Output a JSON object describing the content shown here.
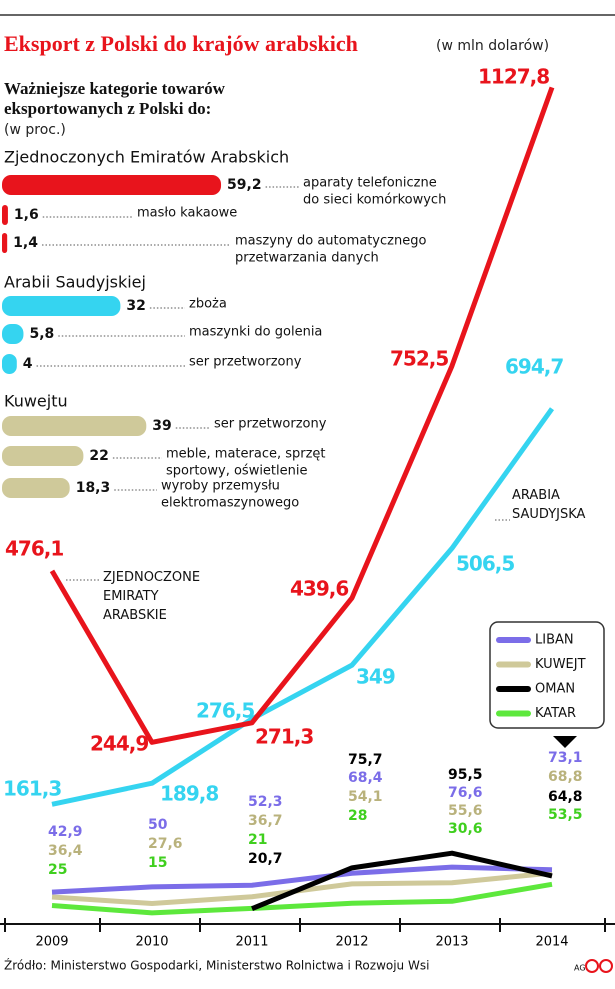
{
  "chart_data": {
    "type": "line",
    "title": "Eksport z Polski do krajów arabskich",
    "unit": "(w mln dolarów)",
    "categories": [
      "2009",
      "2010",
      "2011",
      "2012",
      "2013",
      "2014"
    ],
    "ylim": [
      0,
      1150
    ],
    "series": [
      {
        "name": "ZJEDNOCZONE EMIRATY ARABSKIE",
        "color": "#e8141c",
        "legend": false,
        "values": [
          476.1,
          244.9,
          271.3,
          439.6,
          752.5,
          1127.8
        ],
        "value_labels": [
          "476,1",
          "244,9",
          "271,3",
          "439,6",
          "752,5",
          "1127,8"
        ]
      },
      {
        "name": "ARABIA SAUDYJSKA",
        "color": "#35d4f0",
        "legend": false,
        "values": [
          161.3,
          189.8,
          276.5,
          349,
          506.5,
          694.7
        ],
        "value_labels": [
          "161,3",
          "189,8",
          "276,5",
          "349",
          "506,5",
          "694,7"
        ]
      },
      {
        "name": "LIBAN",
        "color": "#7b6de8",
        "legend": true,
        "values": [
          42.9,
          50,
          52.3,
          68.4,
          76.6,
          73.1
        ],
        "value_labels": [
          "42,9",
          "50",
          "52,3",
          "68,4",
          "76,6",
          "73,1"
        ]
      },
      {
        "name": "KUWEJT",
        "color": "#cfc99a",
        "legend": true,
        "values": [
          36.4,
          27.6,
          36.7,
          54.1,
          55.6,
          68.8
        ],
        "value_labels": [
          "36,4",
          "27,6",
          "36,7",
          "54,1",
          "55,6",
          "68,8"
        ]
      },
      {
        "name": "OMAN",
        "color": "#000000",
        "legend": true,
        "values": [
          null,
          null,
          20.7,
          75.7,
          95.5,
          64.8
        ],
        "value_labels": [
          null,
          null,
          "20,7",
          "75,7",
          "95,5",
          "64,8"
        ]
      },
      {
        "name": "KATAR",
        "color": "#5de83c",
        "legend": true,
        "values": [
          25,
          15,
          21,
          28,
          30.6,
          53.5
        ],
        "value_labels": [
          "25",
          "15",
          "21",
          "28",
          "30,6",
          "53,5"
        ]
      }
    ],
    "breakdown": {
      "type": "bar",
      "title": [
        "Ważniejsze kategorie towarów",
        "eksportowanych z Polski do:"
      ],
      "unit": "(w proc.)",
      "groups": [
        {
          "name": "Zjednoczonych Emiratów Arabskich",
          "color": "#e8141c",
          "values": [
            59.2,
            1.6,
            1.4
          ],
          "value_labels": [
            "59,2",
            "1,6",
            "1,4"
          ],
          "categories": [
            [
              "aparaty telefoniczne",
              "do sieci komórkowych"
            ],
            [
              "masło kakaowe"
            ],
            [
              "maszyny do automatycznego",
              "przetwarzania danych"
            ]
          ]
        },
        {
          "name": "Arabii Saudyjskiej",
          "color": "#35d4f0",
          "values": [
            32,
            5.8,
            4
          ],
          "value_labels": [
            "32",
            "5,8",
            "4"
          ],
          "categories": [
            [
              "zboża"
            ],
            [
              "maszynki do golenia"
            ],
            [
              "ser przetworzony"
            ]
          ]
        },
        {
          "name": "Kuwejtu",
          "color": "#cfc99a",
          "values": [
            39,
            22,
            18.3
          ],
          "value_labels": [
            "39",
            "22",
            "18,3"
          ],
          "categories": [
            [
              "ser przetworzony"
            ],
            [
              "meble, materace, sprzęt",
              "sportowy, oświetlenie"
            ],
            [
              "wyroby przemysłu",
              "elektromaszynowego"
            ]
          ]
        }
      ]
    },
    "source": "Źródło: Ministerstwo Gospodarki, Ministerstwo Rolnictwa i Rozwoju Wsi",
    "credit": "AG"
  }
}
